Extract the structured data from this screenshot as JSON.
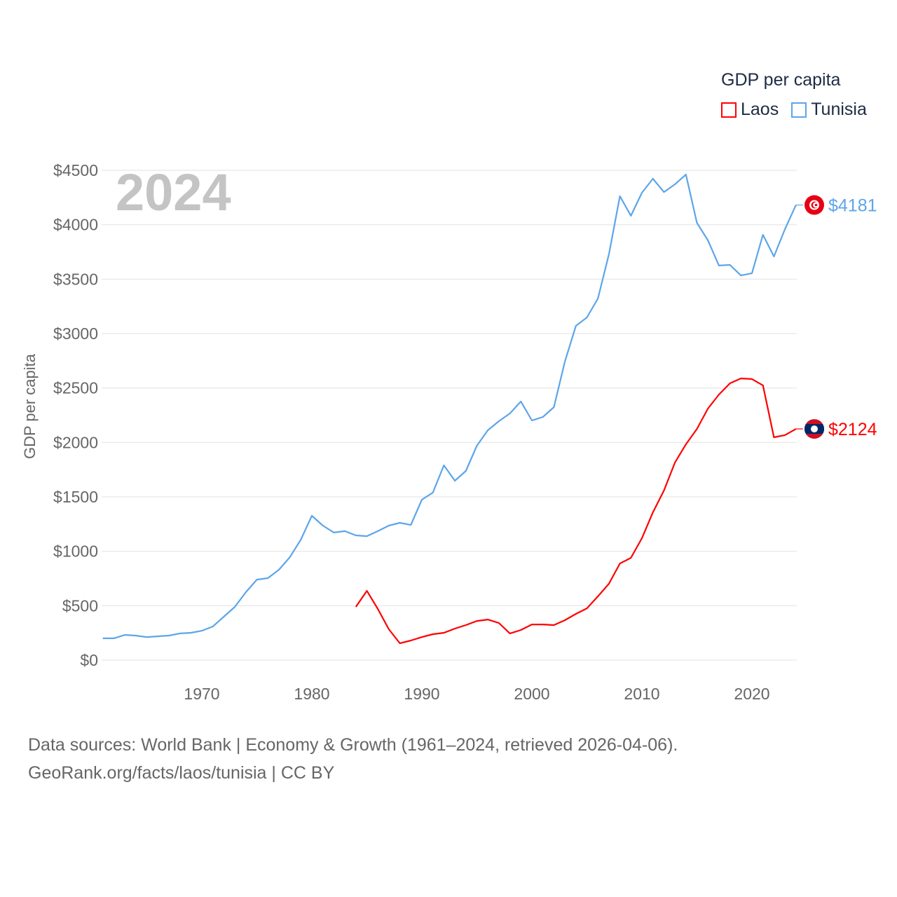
{
  "chart_data": {
    "type": "line",
    "title": "",
    "watermark_year": "2024",
    "xlabel": "",
    "ylabel": "GDP per capita",
    "xlim": [
      1961,
      2024
    ],
    "ylim": [
      0,
      4500
    ],
    "x_ticks": [
      1970,
      1980,
      1990,
      2000,
      2010,
      2020
    ],
    "y_ticks": [
      0,
      500,
      1000,
      1500,
      2000,
      2500,
      3000,
      3500,
      4000,
      4500
    ],
    "y_tick_labels": [
      "$0",
      "$500",
      "$1000",
      "$1500",
      "$2000",
      "$2500",
      "$3000",
      "$3500",
      "$4000",
      "$4500"
    ],
    "grid": true,
    "legend": {
      "title": "GDP per capita",
      "placement": "top-right"
    },
    "series": [
      {
        "name": "Laos",
        "color": "#ff0000",
        "end_label": "$2124",
        "flag": "laos-flag",
        "x": [
          1984,
          1985,
          1986,
          1987,
          1988,
          1989,
          1990,
          1991,
          1992,
          1993,
          1994,
          1995,
          1996,
          1997,
          1998,
          1999,
          2000,
          2001,
          2002,
          2003,
          2004,
          2005,
          2006,
          2007,
          2008,
          2009,
          2010,
          2011,
          2012,
          2013,
          2014,
          2015,
          2016,
          2017,
          2018,
          2019,
          2020,
          2021,
          2022,
          2023,
          2024
        ],
        "values": [
          489,
          637,
          470,
          283,
          155,
          180,
          212,
          238,
          251,
          290,
          322,
          360,
          373,
          341,
          245,
          277,
          328,
          328,
          322,
          367,
          425,
          476,
          586,
          702,
          888,
          940,
          1120,
          1358,
          1558,
          1815,
          1983,
          2124,
          2311,
          2440,
          2543,
          2588,
          2582,
          2524,
          2047,
          2067,
          2124
        ]
      },
      {
        "name": "Tunisia",
        "color": "#5da5ea",
        "end_label": "$4181",
        "flag": "tunisia-flag",
        "x": [
          1961,
          1962,
          1963,
          1964,
          1965,
          1966,
          1967,
          1968,
          1969,
          1970,
          1971,
          1972,
          1973,
          1974,
          1975,
          1976,
          1977,
          1978,
          1979,
          1980,
          1981,
          1982,
          1983,
          1984,
          1985,
          1986,
          1987,
          1988,
          1989,
          1990,
          1991,
          1992,
          1993,
          1994,
          1995,
          1996,
          1997,
          1998,
          1999,
          2000,
          2001,
          2002,
          2003,
          2004,
          2005,
          2006,
          2007,
          2008,
          2009,
          2010,
          2011,
          2012,
          2013,
          2014,
          2015,
          2016,
          2017,
          2018,
          2019,
          2020,
          2021,
          2022,
          2023,
          2024
        ],
        "values": [
          200,
          200,
          232,
          225,
          212,
          219,
          225,
          245,
          251,
          270,
          309,
          399,
          489,
          624,
          740,
          753,
          830,
          946,
          1107,
          1326,
          1236,
          1172,
          1185,
          1146,
          1139,
          1185,
          1236,
          1262,
          1242,
          1474,
          1539,
          1790,
          1648,
          1738,
          1970,
          2112,
          2195,
          2266,
          2376,
          2202,
          2234,
          2324,
          2743,
          3071,
          3148,
          3322,
          3728,
          4262,
          4082,
          4294,
          4423,
          4300,
          4371,
          4461,
          4017,
          3856,
          3625,
          3631,
          3534,
          3554,
          3908,
          3708,
          3959,
          4181
        ]
      }
    ]
  },
  "footer": {
    "line1": "Data sources: World Bank | Economy & Growth (1961–2024, retrieved 2026-04-06).",
    "line2": "GeoRank.org/facts/laos/tunisia | CC BY"
  }
}
